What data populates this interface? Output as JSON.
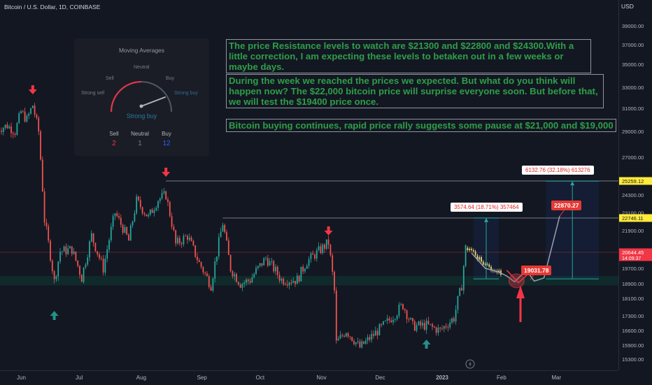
{
  "header": {
    "symbol": "Bitcoin / U.S. Dollar, 1D, COINBASE",
    "currency": "USD"
  },
  "chart_data": {
    "type": "candlestick",
    "price_axis_ticks": [
      "39000.00",
      "37000.00",
      "35000.00",
      "33000.00",
      "31000.00",
      "29000.00",
      "27000.00",
      "24300.00",
      "23100.00",
      "21900.00",
      "19700.00",
      "18900.00",
      "18100.00",
      "17300.00",
      "16600.00",
      "15900.00",
      "15300.00"
    ],
    "time_axis_labels": [
      "Jun",
      "Jul",
      "Aug",
      "Sep",
      "Oct",
      "Nov",
      "Dec",
      "2023",
      "Feb",
      "Mar"
    ],
    "marked_prices": [
      {
        "label": "25259.12",
        "color": "#ffeb3b",
        "text_color": "#131722"
      },
      {
        "label": "22746.11",
        "color": "#ffeb3b",
        "text_color": "#131722"
      },
      {
        "label": "20644.45",
        "sub": "14:09:37",
        "color": "#f23645",
        "text_color": "#ffffff"
      }
    ],
    "resistance_levels": [
      22746.11,
      25259.12
    ],
    "support_zone": [
      18800,
      19300
    ],
    "close_points": [
      [
        "2022-05-20",
        29200
      ],
      [
        "2022-05-25",
        29500
      ],
      [
        "2022-05-29",
        29000
      ],
      [
        "2022-06-01",
        30700
      ],
      [
        "2022-06-04",
        30000
      ],
      [
        "2022-06-07",
        31300
      ],
      [
        "2022-06-10",
        29000
      ],
      [
        "2022-06-13",
        22600
      ],
      [
        "2022-06-18",
        19000
      ],
      [
        "2022-06-21",
        20700
      ],
      [
        "2022-06-27",
        20800
      ],
      [
        "2022-07-02",
        19200
      ],
      [
        "2022-07-07",
        21600
      ],
      [
        "2022-07-13",
        19700
      ],
      [
        "2022-07-19",
        23100
      ],
      [
        "2022-07-26",
        21300
      ],
      [
        "2022-07-30",
        23900
      ],
      [
        "2022-08-05",
        22800
      ],
      [
        "2022-08-10",
        24000
      ],
      [
        "2022-08-14",
        24300
      ],
      [
        "2022-08-19",
        21100
      ],
      [
        "2022-08-25",
        21600
      ],
      [
        "2022-08-31",
        20000
      ],
      [
        "2022-09-06",
        18800
      ],
      [
        "2022-09-12",
        22400
      ],
      [
        "2022-09-16",
        19700
      ],
      [
        "2022-09-21",
        18900
      ],
      [
        "2022-09-26",
        19100
      ],
      [
        "2022-10-04",
        20300
      ],
      [
        "2022-10-12",
        19100
      ],
      [
        "2022-10-20",
        19100
      ],
      [
        "2022-10-25",
        20100
      ],
      [
        "2022-10-30",
        20600
      ],
      [
        "2022-11-05",
        21200
      ],
      [
        "2022-11-08",
        18500
      ],
      [
        "2022-11-09",
        16000
      ],
      [
        "2022-11-14",
        16600
      ],
      [
        "2022-11-21",
        15800
      ],
      [
        "2022-11-28",
        16400
      ],
      [
        "2022-12-05",
        17000
      ],
      [
        "2022-12-13",
        17800
      ],
      [
        "2022-12-18",
        16800
      ],
      [
        "2022-12-25",
        16850
      ],
      [
        "2023-01-01",
        16600
      ],
      [
        "2023-01-08",
        17200
      ],
      [
        "2023-01-12",
        18800
      ],
      [
        "2023-01-14",
        20900
      ],
      [
        "2023-01-18",
        20700
      ],
      [
        "2023-01-22",
        20100
      ],
      [
        "2023-01-27",
        19700
      ],
      [
        "2023-02-01",
        19500
      ]
    ],
    "projection_path": [
      [
        "2023-01-17",
        20600
      ],
      [
        "2023-01-24",
        19700
      ],
      [
        "2023-01-31",
        19500
      ],
      [
        "2023-02-04",
        19300
      ],
      [
        "2023-02-08",
        19000
      ],
      [
        "2023-02-14",
        19600
      ],
      [
        "2023-02-18",
        19031.78
      ],
      [
        "2023-02-23",
        19200
      ],
      [
        "2023-03-03",
        22870.27
      ]
    ],
    "bar_labels": [
      "19031.78",
      "22870.27"
    ],
    "measurements": [
      "3574.64 (18.71%) 357464",
      "6132.76 (32.18%) 613276"
    ],
    "signals": {
      "sell_dates": [
        "2022-06-07",
        "2022-08-14",
        "2022-11-05"
      ],
      "buy_dates": [
        "2022-06-18",
        "2022-12-25"
      ],
      "target_date": "2023-02-11"
    },
    "colors": {
      "bull": "#26a69a",
      "bear": "#ef5350",
      "projection": "#e8d87a",
      "sell_arrow": "#f23645",
      "buy_arrow": "#229189"
    }
  },
  "annotations": {
    "a1": "The price Resistance levels to watch are $21300 and $22800 and $24300.With a little correction, I am expecting these levels to betaken out in a few weeks or maybe days.",
    "a2": "During the week we reached the prices we expected. But what do you think will happen now? The $22,000 bitcoin price will surprise everyone soon. But before that, we will test the $19400 price once.",
    "a3": "Bitcoin buying continues, rapid price rally suggests some pause at $21,000 and $19,000"
  },
  "widget": {
    "title": "Moving Averages",
    "labels": {
      "neutral": "Neutral",
      "sell": "Sell",
      "buy": "Buy",
      "strong_sell": "Strong sell",
      "strong_buy": "Strong buy"
    },
    "verdict": "Strong buy",
    "counts": [
      {
        "label": "Sell",
        "value": "2",
        "color": "#f23645"
      },
      {
        "label": "Neutral",
        "value": "1",
        "color": "#787b86"
      },
      {
        "label": "Buy",
        "value": "12",
        "color": "#2962ff"
      }
    ]
  },
  "lightning_icon": "lightning-icon"
}
